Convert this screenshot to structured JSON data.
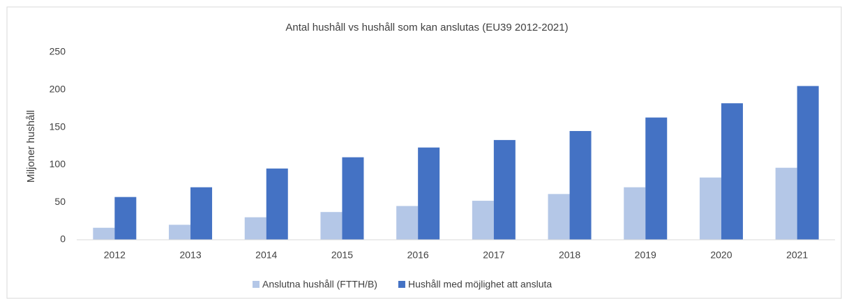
{
  "chart_data": {
    "type": "bar",
    "title": "Antal hushåll vs hushåll som kan anslutas (EU39 2012-2021)",
    "y_label": "Miljoner hushåll",
    "categories": [
      "2012",
      "2013",
      "2014",
      "2015",
      "2016",
      "2017",
      "2018",
      "2019",
      "2020",
      "2021"
    ],
    "series": [
      {
        "name": "Anslutna hushåll (FTTH/B)",
        "color": "#b4c7e7",
        "values": [
          16,
          20,
          30,
          37,
          45,
          52,
          61,
          70,
          83,
          96
        ]
      },
      {
        "name": "Hushåll med möjlighet att ansluta",
        "color": "#4472c4",
        "values": [
          57,
          70,
          95,
          110,
          123,
          133,
          145,
          163,
          182,
          205
        ]
      }
    ],
    "ylim": [
      0,
      250
    ],
    "yticks": [
      0,
      50,
      100,
      150,
      200,
      250
    ],
    "grid": false,
    "legend": "bottom"
  }
}
